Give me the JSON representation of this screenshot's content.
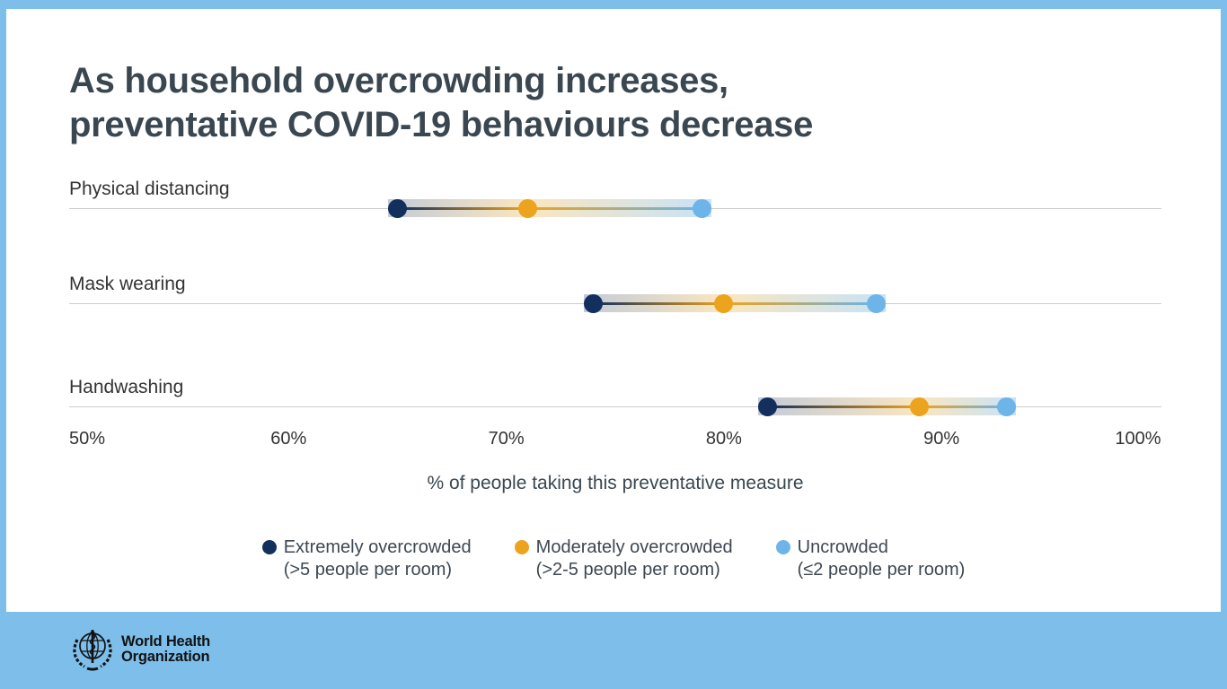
{
  "title": {
    "line1": "As household overcrowding increases,",
    "line2": "preventative COVID-19 behaviours decrease"
  },
  "chart_data": {
    "type": "dumbbell-dot-plot",
    "title": "As household overcrowding increases, preventative COVID-19 behaviours decrease",
    "categories": [
      "Physical distancing",
      "Mask wearing",
      "Handwashing"
    ],
    "series": [
      {
        "name": "Extremely overcrowded (>5 people per room)",
        "color": "#132F5D",
        "values": [
          65,
          74,
          82
        ]
      },
      {
        "name": "Moderately overcrowded (>2-5 people per room)",
        "color": "#ECA41F",
        "values": [
          71,
          80,
          89
        ]
      },
      {
        "name": "Uncrowded (≤2 people per room)",
        "color": "#6DB4E8",
        "values": [
          79,
          87,
          93
        ]
      }
    ],
    "xlabel": "% of people taking this preventative measure",
    "xlim": [
      50,
      100
    ],
    "tick_values": [
      50,
      60,
      70,
      80,
      90,
      100
    ],
    "ticks": [
      "50%",
      "60%",
      "70%",
      "80%",
      "90%",
      "100%"
    ],
    "grid": "horizontal-row-lines",
    "legend_position": "bottom",
    "row_y": [
      222,
      328,
      443
    ]
  },
  "legend": {
    "items": [
      {
        "label": "Extremely overcrowded",
        "sublabel": "(>5 people per room)",
        "color": "#132F5D"
      },
      {
        "label": "Moderately overcrowded",
        "sublabel": "(>2-5 people per room)",
        "color": "#ECA41F"
      },
      {
        "label": "Uncrowded",
        "sublabel": "(≤2 people per room)",
        "color": "#6DB4E8"
      }
    ]
  },
  "footer": {
    "org_line1": "World Health",
    "org_line2": "Organization"
  },
  "colors": {
    "background": "#7DBFEA",
    "card": "#FFFFFF",
    "title_text": "#3A4750",
    "label_text": "#333333",
    "gridline": "#CCCCCC"
  }
}
